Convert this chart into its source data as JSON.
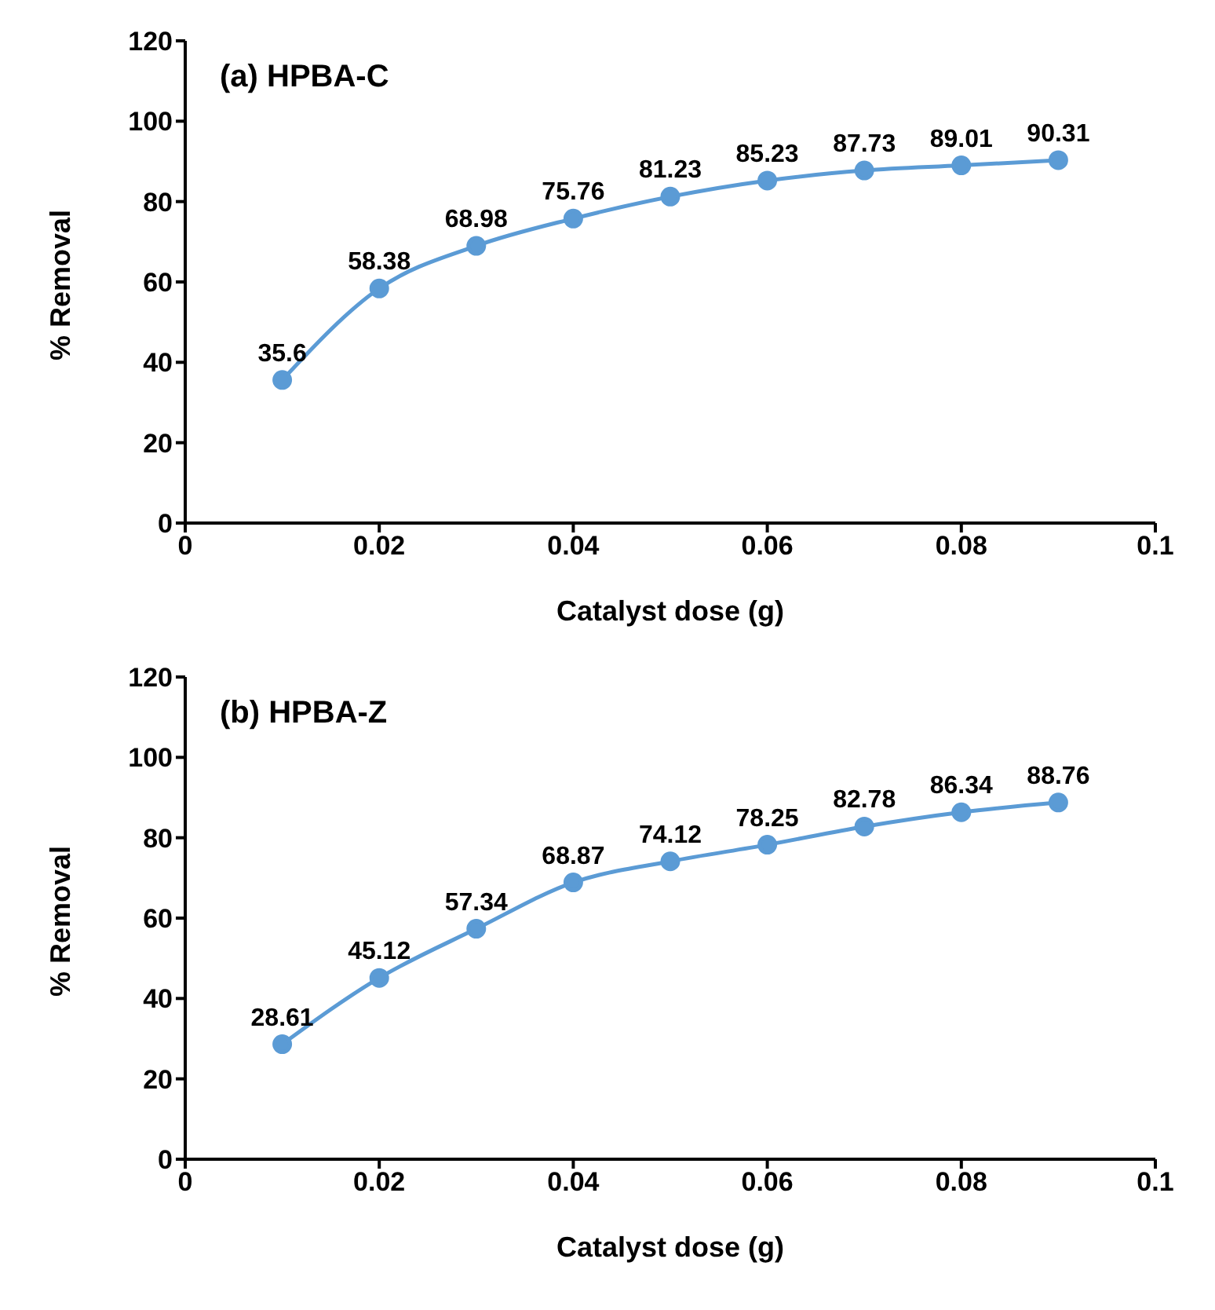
{
  "chart_data": [
    {
      "type": "line",
      "title": "(a) HPBA-C",
      "xlabel": "Catalyst dose (g)",
      "ylabel": "% Removal",
      "x": [
        0.01,
        0.02,
        0.03,
        0.04,
        0.05,
        0.06,
        0.07,
        0.08,
        0.09
      ],
      "series": [
        {
          "color": "#5b9bd5",
          "values": [
            35.6,
            58.38,
            68.98,
            75.76,
            81.23,
            85.23,
            87.73,
            89.01,
            90.31
          ]
        }
      ],
      "xlim": [
        0,
        0.1
      ],
      "xticks": [
        0,
        0.02,
        0.04,
        0.06,
        0.08,
        0.1
      ],
      "ylim": [
        0,
        120
      ],
      "yticks": [
        0,
        20,
        40,
        60,
        80,
        100,
        120
      ],
      "data_labels": true,
      "marker": "circle",
      "line_style": "solid",
      "grid": false,
      "legend": false
    },
    {
      "type": "line",
      "title": "(b) HPBA-Z",
      "xlabel": "Catalyst dose (g)",
      "ylabel": "% Removal",
      "x": [
        0.01,
        0.02,
        0.03,
        0.04,
        0.05,
        0.06,
        0.07,
        0.08,
        0.09
      ],
      "series": [
        {
          "color": "#5b9bd5",
          "values": [
            28.61,
            45.12,
            57.34,
            68.87,
            74.12,
            78.25,
            82.78,
            86.34,
            88.76
          ]
        }
      ],
      "xlim": [
        0,
        0.1
      ],
      "xticks": [
        0,
        0.02,
        0.04,
        0.06,
        0.08,
        0.1
      ],
      "ylim": [
        0,
        120
      ],
      "yticks": [
        0,
        20,
        40,
        60,
        80,
        100,
        120
      ],
      "data_labels": true,
      "marker": "circle",
      "line_style": "solid",
      "grid": false,
      "legend": false
    }
  ]
}
